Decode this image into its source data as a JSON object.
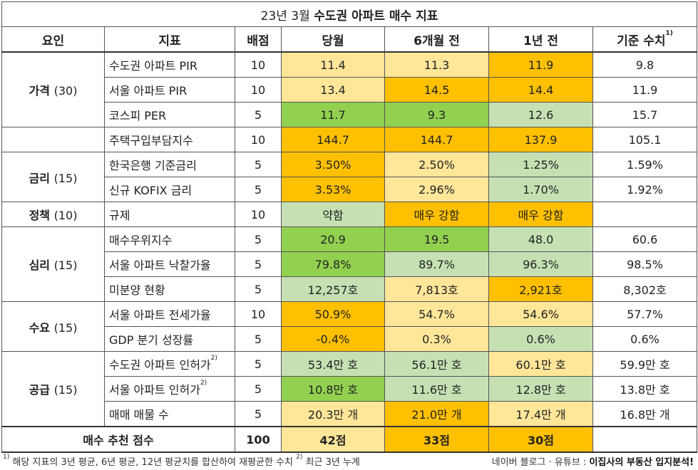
{
  "title": {
    "prefix": "23년 3월 ",
    "bold": "수도권 아파트 매수 지표"
  },
  "headers": {
    "factor": "요인",
    "indicator": "지표",
    "weight": "배점",
    "current": "당월",
    "six_months": "6개월 전",
    "one_year": "1년 전",
    "baseline": "기준 수치",
    "baseline_note": "1)"
  },
  "rows": [
    {
      "indicator": "수도권 아파트 PIR",
      "note": "",
      "weight": "10",
      "current": "11.4",
      "six": "11.3",
      "year": "11.9",
      "base": "9.8",
      "colors": [
        "#ffe699",
        "#ffe699",
        "#ffc000"
      ]
    },
    {
      "indicator": "서울 아파트 PIR",
      "note": "",
      "weight": "10",
      "current": "13.4",
      "six": "14.5",
      "year": "14.4",
      "base": "11.9",
      "colors": [
        "#ffe699",
        "#ffc000",
        "#ffc000"
      ]
    },
    {
      "indicator": "코스피 PER",
      "note": "",
      "weight": "5",
      "current": "11.7",
      "six": "9.3",
      "year": "12.6",
      "base": "15.7",
      "colors": [
        "#92d050",
        "#92d050",
        "#c6e0b4"
      ]
    },
    {
      "indicator": "주택구입부담지수",
      "note": "",
      "weight": "10",
      "current": "144.7",
      "six": "144.7",
      "year": "137.9",
      "base": "105.1",
      "colors": [
        "#ffc000",
        "#ffc000",
        "#ffc000"
      ]
    },
    {
      "indicator": "한국은행 기준금리",
      "note": "",
      "weight": "5",
      "current": "3.50%",
      "six": "2.50%",
      "year": "1.25%",
      "base": "1.59%",
      "colors": [
        "#ffc000",
        "#ffe699",
        "#c6e0b4"
      ]
    },
    {
      "indicator": "신규 KOFIX 금리",
      "note": "",
      "weight": "5",
      "current": "3.53%",
      "six": "2.96%",
      "year": "1.70%",
      "base": "1.92%",
      "colors": [
        "#ffc000",
        "#ffe699",
        "#c6e0b4"
      ]
    },
    {
      "indicator": "규제",
      "note": "",
      "weight": "10",
      "current": "약함",
      "six": "매우 강함",
      "year": "매우 강함",
      "base": "",
      "colors": [
        "#c6e0b4",
        "#ffc000",
        "#ffc000"
      ]
    },
    {
      "indicator": "매수우위지수",
      "note": "",
      "weight": "5",
      "current": "20.9",
      "six": "19.5",
      "year": "48.0",
      "base": "60.6",
      "colors": [
        "#92d050",
        "#92d050",
        "#c6e0b4"
      ]
    },
    {
      "indicator": "서울 아파트 낙찰가율",
      "note": "",
      "weight": "5",
      "current": "79.8%",
      "six": "89.7%",
      "year": "96.3%",
      "base": "98.5%",
      "colors": [
        "#92d050",
        "#c6e0b4",
        "#c6e0b4"
      ]
    },
    {
      "indicator": "미분양 현황",
      "note": "",
      "weight": "5",
      "current": "12,257호",
      "six": "7,813호",
      "year": "2,921호",
      "base": "8,302호",
      "colors": [
        "#c6e0b4",
        "#ffe699",
        "#ffc000"
      ]
    },
    {
      "indicator": "서울 아파트 전세가율",
      "note": "",
      "weight": "10",
      "current": "50.9%",
      "six": "54.7%",
      "year": "54.6%",
      "base": "57.7%",
      "colors": [
        "#ffc000",
        "#ffe699",
        "#ffe699"
      ]
    },
    {
      "indicator": "GDP 분기 성장률",
      "note": "",
      "weight": "5",
      "current": "-0.4%",
      "six": "0.3%",
      "year": "0.6%",
      "base": "0.6%",
      "colors": [
        "#ffc000",
        "#ffe699",
        "#c6e0b4"
      ]
    },
    {
      "indicator": "수도권 아파트 인허가",
      "note": "2)",
      "weight": "5",
      "current": "53.4만 호",
      "six": "56.1만 호",
      "year": "60.1만 호",
      "base": "59.9만 호",
      "colors": [
        "#c6e0b4",
        "#c6e0b4",
        "#ffe699"
      ]
    },
    {
      "indicator": "서울 아파트 인허가",
      "note": "2)",
      "weight": "5",
      "current": "10.8만 호",
      "six": "11.6만 호",
      "year": "12.8만 호",
      "base": "13.8만 호",
      "colors": [
        "#92d050",
        "#c6e0b4",
        "#c6e0b4"
      ]
    },
    {
      "indicator": "매매 매물 수",
      "note": "",
      "weight": "5",
      "current": "20.3만 개",
      "six": "21.0만 개",
      "year": "17.4만 개",
      "base": "16.8만 개",
      "colors": [
        "#ffe699",
        "#ffc000",
        "#ffe699"
      ]
    }
  ],
  "groups": [
    {
      "name": "가격",
      "weight": "(30)"
    },
    {
      "name": "",
      "weight": ""
    },
    {
      "name": "금리",
      "weight": "(15)"
    },
    {
      "name": "정책",
      "weight": "(10)"
    },
    {
      "name": "심리",
      "weight": "(15)"
    },
    {
      "name": "수요",
      "weight": "(15)"
    },
    {
      "name": "공급",
      "weight": "(15)"
    }
  ],
  "total": {
    "label": "매수 추천 점수",
    "weight": "100",
    "current": "42점",
    "six": "33점",
    "year": "30점",
    "colors": [
      "#ffe699",
      "#ffc000",
      "#ffc000"
    ]
  },
  "footnote": {
    "n1": "1)",
    "t1": " 해당 지표의 3년 평균, 6년 평균, 12년 평균치를 합산하여 재평균한 수치 ",
    "n2": "2)",
    "t2": " 최근 3년 누계"
  },
  "credit": {
    "prefix": "네이버 블로그 · 유튜브 : ",
    "bold": "이집사의 부동산 입지분석!"
  }
}
